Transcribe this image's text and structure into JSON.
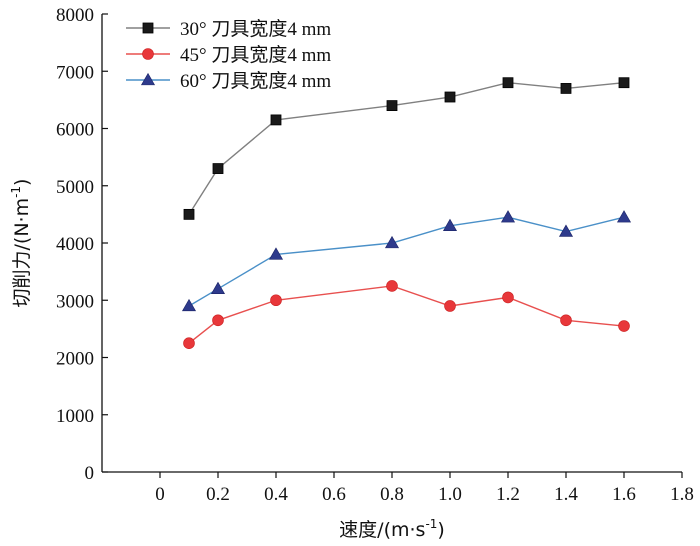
{
  "chart_data": {
    "type": "line",
    "title": "",
    "xlabel": "速度/(m·s",
    "xlabel_sup": "-1",
    "xlabel_close": ")",
    "ylabel": "切削力/(N·m",
    "ylabel_sup": "-1",
    "ylabel_close": ")",
    "xlim": [
      -0.2,
      1.8
    ],
    "ylim": [
      0,
      8000
    ],
    "xticks": [
      "0",
      "0.2",
      "0.4",
      "0.6",
      "0.8",
      "1.0",
      "1.2",
      "1.4",
      "1.6",
      "1.8"
    ],
    "xtick_values": [
      0,
      0.2,
      0.4,
      0.6,
      0.8,
      1.0,
      1.2,
      1.4,
      1.6,
      1.8
    ],
    "yticks": [
      "0",
      "1000",
      "2000",
      "3000",
      "4000",
      "5000",
      "6000",
      "7000",
      "8000"
    ],
    "ytick_values": [
      0,
      1000,
      2000,
      3000,
      4000,
      5000,
      6000,
      7000,
      8000
    ],
    "grid": false,
    "legend_position": "top-left",
    "x": [
      0.1,
      0.2,
      0.4,
      0.8,
      1.0,
      1.2,
      1.4,
      1.6
    ],
    "series": [
      {
        "name": "30°  刀具宽度4 mm",
        "color": "#808080",
        "marker": "square",
        "marker_color": "#1a1a1a",
        "values": [
          4500,
          5300,
          6150,
          6400,
          6550,
          6800,
          6700,
          6800
        ]
      },
      {
        "name": "45°  刀具宽度4 mm",
        "color": "#e8504f",
        "marker": "circle",
        "marker_color": "#e8373a",
        "values": [
          2250,
          2650,
          3000,
          3250,
          2900,
          3050,
          2650,
          2550
        ]
      },
      {
        "name": "60°  刀具宽度4 mm",
        "color": "#4a90c8",
        "marker": "triangle",
        "marker_color": "#2e3a8c",
        "values": [
          2900,
          3200,
          3800,
          4000,
          4300,
          4450,
          4200,
          4450
        ]
      }
    ]
  }
}
